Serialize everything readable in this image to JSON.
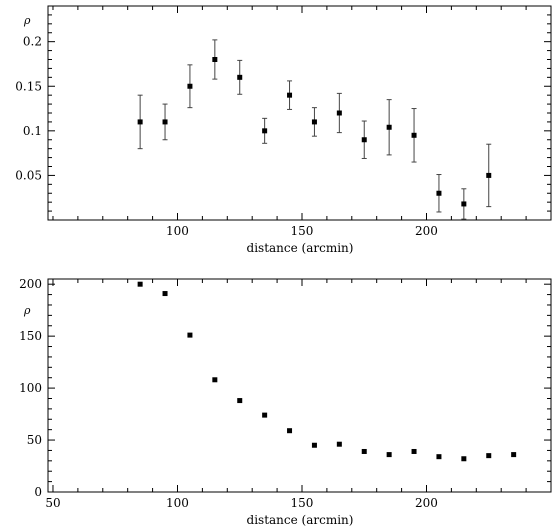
{
  "chart_data": [
    {
      "type": "scatter",
      "title": "",
      "xlabel": "distance (arcmin)",
      "ylabel": "ρ",
      "xlim": [
        48,
        250
      ],
      "ylim": [
        0,
        0.24
      ],
      "xticks": [
        100,
        150,
        200
      ],
      "yticks": [
        0.05,
        0.1,
        0.15,
        0.2
      ],
      "ytick_labels": [
        "0.05",
        "0.1",
        "0.15",
        "0.2"
      ],
      "error_bars": true,
      "series": [
        {
          "x": [
            85,
            95,
            105,
            115,
            125,
            135,
            145,
            155,
            165,
            175,
            185,
            195,
            205,
            215,
            225
          ],
          "y": [
            0.11,
            0.11,
            0.15,
            0.18,
            0.16,
            0.1,
            0.14,
            0.11,
            0.12,
            0.09,
            0.104,
            0.095,
            0.03,
            0.018,
            0.05
          ],
          "err": [
            0.03,
            0.02,
            0.024,
            0.022,
            0.019,
            0.014,
            0.016,
            0.016,
            0.022,
            0.021,
            0.031,
            0.03,
            0.021,
            0.017,
            0.035
          ]
        }
      ]
    },
    {
      "type": "scatter",
      "title": "",
      "xlabel": "distance (arcmin)",
      "ylabel": "ρ",
      "xlim": [
        48,
        250
      ],
      "ylim": [
        0,
        205
      ],
      "xticks": [
        50,
        100,
        150,
        200
      ],
      "yticks": [
        0,
        50,
        100,
        150,
        200
      ],
      "ytick_labels": [
        "0",
        "50",
        "100",
        "150",
        "200"
      ],
      "error_bars": false,
      "series": [
        {
          "x": [
            85,
            95,
            105,
            115,
            125,
            135,
            145,
            155,
            165,
            175,
            185,
            195,
            205,
            215,
            225,
            235
          ],
          "y": [
            200,
            191,
            151,
            108,
            88,
            74,
            59,
            45,
            46,
            39,
            36,
            39,
            34,
            32,
            35,
            36
          ]
        }
      ]
    }
  ]
}
